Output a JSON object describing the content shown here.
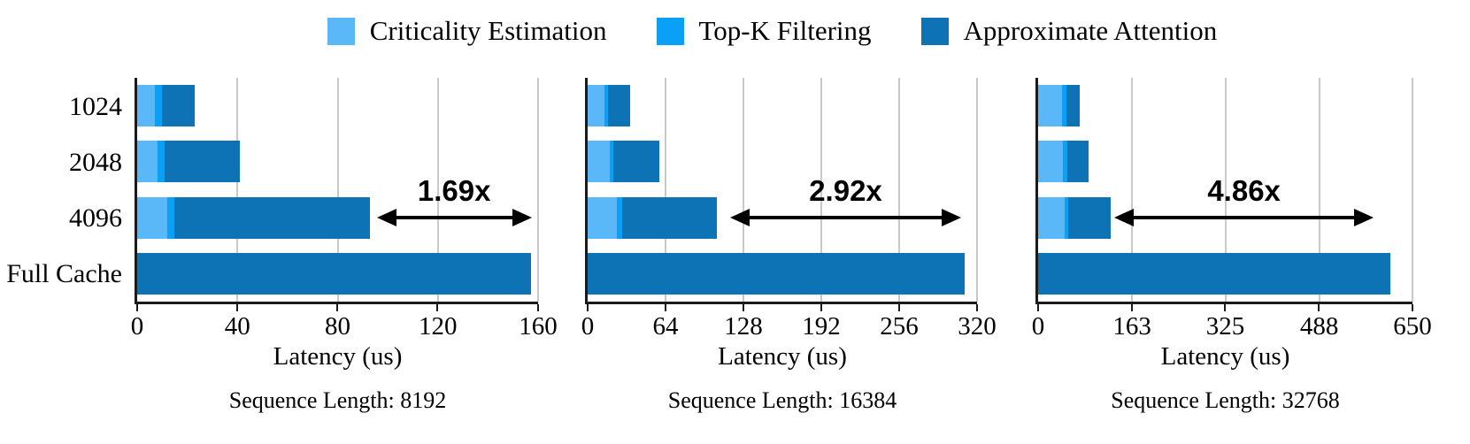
{
  "legend": [
    {
      "label": "Criticality Estimation",
      "color": "#5BB8F8"
    },
    {
      "label": "Top-K Filtering",
      "color": "#0AA0F5"
    },
    {
      "label": "Approximate Attention",
      "color": "#0E73B4"
    }
  ],
  "colors": {
    "grid": "#C9C9C9",
    "spine": "#1A1A1A",
    "text": "#000000",
    "annotation": "#000000"
  },
  "chart_data": [
    {
      "type": "bar",
      "orientation": "horizontal",
      "stacked": true,
      "grid": true,
      "legend_position": "top",
      "categories": [
        "1024",
        "2048",
        "4096",
        "Full Cache"
      ],
      "series": [
        {
          "name": "Criticality Estimation",
          "values": [
            7,
            8,
            12,
            0
          ]
        },
        {
          "name": "Top-K Filtering",
          "values": [
            3,
            3,
            3,
            0
          ]
        },
        {
          "name": "Approximate Attention",
          "values": [
            13,
            30,
            78,
            157
          ]
        }
      ],
      "totals": [
        23,
        41,
        93,
        157
      ],
      "xlabel": "Latency (us)",
      "ylabel": "",
      "xlim": [
        0,
        160
      ],
      "xticks": [
        0,
        40,
        80,
        120,
        160
      ],
      "show_ytick_labels": true,
      "caption": "Sequence Length: 8192",
      "speedup": {
        "label": "1.69x",
        "from": 96,
        "to": 157,
        "row": "4096"
      }
    },
    {
      "type": "bar",
      "orientation": "horizontal",
      "stacked": true,
      "grid": true,
      "legend_position": "top",
      "categories": [
        "1024",
        "2048",
        "4096",
        "Full Cache"
      ],
      "series": [
        {
          "name": "Criticality Estimation",
          "values": [
            14,
            18,
            24,
            0
          ]
        },
        {
          "name": "Top-K Filtering",
          "values": [
            3,
            3,
            4,
            0
          ]
        },
        {
          "name": "Approximate Attention",
          "values": [
            18,
            38,
            78,
            310
          ]
        }
      ],
      "totals": [
        35,
        59,
        106,
        310
      ],
      "xlabel": "Latency (us)",
      "ylabel": "",
      "xlim": [
        0,
        320
      ],
      "xticks": [
        0,
        64,
        128,
        192,
        256,
        320
      ],
      "show_ytick_labels": false,
      "caption": "Sequence Length: 16384",
      "speedup": {
        "label": "2.92x",
        "from": 118,
        "to": 306,
        "row": "4096"
      }
    },
    {
      "type": "bar",
      "orientation": "horizontal",
      "stacked": true,
      "grid": true,
      "legend_position": "top",
      "categories": [
        "1024",
        "2048",
        "4096",
        "Full Cache"
      ],
      "series": [
        {
          "name": "Criticality Estimation",
          "values": [
            42,
            43,
            46,
            0
          ]
        },
        {
          "name": "Top-K Filtering",
          "values": [
            7,
            7,
            6,
            0
          ]
        },
        {
          "name": "Approximate Attention",
          "values": [
            23,
            38,
            74,
            612
          ]
        }
      ],
      "totals": [
        72,
        88,
        126,
        612
      ],
      "xlabel": "Latency (us)",
      "ylabel": "",
      "xlim": [
        0,
        650
      ],
      "xticks": [
        0,
        163,
        325,
        488,
        650
      ],
      "show_ytick_labels": false,
      "caption": "Sequence Length: 32768",
      "speedup": {
        "label": "4.86x",
        "from": 134,
        "to": 581,
        "row": "4096"
      }
    }
  ]
}
